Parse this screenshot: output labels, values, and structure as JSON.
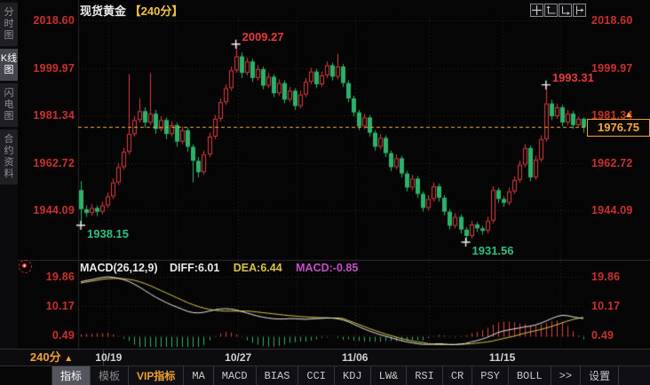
{
  "header": {
    "title": "现货黄金",
    "period": "【240分】"
  },
  "sidebar": {
    "tabs": [
      {
        "label": "分时图",
        "selected": false
      },
      {
        "label": "K线图",
        "selected": true
      },
      {
        "label": "闪电图",
        "selected": false
      },
      {
        "label": "合约资料",
        "selected": false
      }
    ]
  },
  "tool_icons": [
    "move-tool",
    "y-axis-scale",
    "x-axis-scale",
    "shift-right"
  ],
  "price_axis_ticks": [
    "2018.60",
    "1999.97",
    "1981.34",
    "1962.72",
    "1944.09"
  ],
  "macd_axis_ticks": [
    "19.86",
    "10.17",
    "0.49"
  ],
  "current_price": {
    "value": "1976.75"
  },
  "macd_panel": {
    "name": "MACD(26,12,9)",
    "diff_label": "DIFF:6.01",
    "dea_label": "DEA:6.44",
    "macd_label": "MACD:-0.85"
  },
  "x_axis": {
    "period_label": "240分",
    "period_arrow": "▲",
    "dates": [
      "10/19",
      "10/27",
      "11/06",
      "11/15"
    ]
  },
  "toolbar": {
    "items": [
      {
        "label": "指标",
        "state": "selected",
        "cjk": true
      },
      {
        "label": "模板",
        "state": "dim",
        "cjk": true
      },
      {
        "label": "VIP指标",
        "state": "vip",
        "cjk": true
      },
      {
        "label": "MA"
      },
      {
        "label": "MACD"
      },
      {
        "label": "BIAS"
      },
      {
        "label": "CCI"
      },
      {
        "label": "KDJ"
      },
      {
        "label": "LW&"
      },
      {
        "label": "RSI"
      },
      {
        "label": "CR"
      },
      {
        "label": "PSY"
      },
      {
        "label": "BOLL"
      },
      {
        "label": ">>"
      },
      {
        "label": "设置",
        "cjk": true
      }
    ]
  },
  "colors": {
    "up_red": "#e0393d",
    "down_green": "#2ab46a",
    "axis_red": "#c9302c",
    "accent_orange": "#f2a93f",
    "dea_yellow": "#d9c542",
    "diff_white": "#e8e8e8",
    "macd_magenta": "#c34fc9",
    "anno_red": "#e8393c",
    "anno_green": "#2fbf7f",
    "grid_h": "#3b2424",
    "grid_v": "#282828"
  },
  "chart_data": {
    "type": "candlestick+macd",
    "title": "现货黄金 240分K线 与 MACD(26,12,9)",
    "price_ticks": [
      2018.6,
      1999.97,
      1981.34,
      1962.72,
      1944.09
    ],
    "macd_ticks": [
      19.86,
      10.17,
      0.49
    ],
    "date_ticks": [
      "10/19",
      "10/27",
      "11/06",
      "11/15"
    ],
    "current_price": 1976.75,
    "legend": {
      "diff": 6.01,
      "dea": 6.44,
      "macd_bar": -0.85
    },
    "annotations": [
      {
        "label": "2009.27",
        "index": 29,
        "at": "high",
        "color": "#e8393c"
      },
      {
        "label": "1993.31",
        "index": 87,
        "at": "high",
        "color": "#e8393c"
      },
      {
        "label": "1938.15",
        "index": 0,
        "at": "low",
        "color": "#2fbf7f"
      },
      {
        "label": "1931.56",
        "index": 72,
        "at": "low",
        "color": "#2fbf7f"
      }
    ],
    "candles": [
      [
        1952.0,
        1955.5,
        1938.15,
        1944.5
      ],
      [
        1944.5,
        1946.0,
        1941.5,
        1943.0
      ],
      [
        1943.0,
        1946.5,
        1942.0,
        1945.0
      ],
      [
        1945.0,
        1946.0,
        1941.8,
        1943.5
      ],
      [
        1943.5,
        1947.5,
        1942.5,
        1946.0
      ],
      [
        1946.0,
        1951.0,
        1945.0,
        1949.5
      ],
      [
        1949.5,
        1956.5,
        1948.5,
        1955.0
      ],
      [
        1955.0,
        1962.5,
        1954.0,
        1961.0
      ],
      [
        1961.0,
        1968.5,
        1960.0,
        1967.0
      ],
      [
        1967.0,
        1997.5,
        1966.0,
        1974.0
      ],
      [
        1974.0,
        1981.0,
        1973.0,
        1979.5
      ],
      [
        1979.5,
        1988.0,
        1978.5,
        1983.0
      ],
      [
        1983.0,
        1984.5,
        1976.5,
        1978.5
      ],
      [
        1978.5,
        1998.0,
        1977.5,
        1982.0
      ],
      [
        1982.0,
        1983.5,
        1974.0,
        1976.0
      ],
      [
        1976.0,
        1981.0,
        1975.0,
        1979.5
      ],
      [
        1979.5,
        1980.5,
        1972.0,
        1974.0
      ],
      [
        1974.0,
        1979.0,
        1973.0,
        1977.5
      ],
      [
        1977.5,
        1978.5,
        1969.0,
        1971.0
      ],
      [
        1971.0,
        1977.0,
        1970.0,
        1975.5
      ],
      [
        1975.5,
        1976.5,
        1967.0,
        1969.0
      ],
      [
        1969.0,
        1970.0,
        1955.0,
        1963.5
      ],
      [
        1963.5,
        1965.0,
        1957.0,
        1959.0
      ],
      [
        1959.0,
        1967.5,
        1958.0,
        1966.0
      ],
      [
        1966.0,
        1974.5,
        1965.0,
        1973.0
      ],
      [
        1973.0,
        1981.5,
        1972.0,
        1980.0
      ],
      [
        1980.0,
        1988.0,
        1979.0,
        1986.5
      ],
      [
        1986.5,
        1993.5,
        1985.5,
        1992.0
      ],
      [
        1992.0,
        2000.5,
        1991.0,
        1999.0
      ],
      [
        1999.0,
        2009.27,
        1998.0,
        2004.5
      ],
      [
        2004.5,
        2006.0,
        1996.0,
        1998.0
      ],
      [
        1998.0,
        2004.0,
        1997.0,
        2002.5
      ],
      [
        2002.5,
        2003.5,
        1994.5,
        1996.0
      ],
      [
        1996.0,
        2001.0,
        1995.0,
        1999.5
      ],
      [
        1999.5,
        2000.5,
        1991.5,
        1993.0
      ],
      [
        1993.0,
        1998.0,
        1992.0,
        1996.5
      ],
      [
        1996.5,
        1997.5,
        1988.5,
        1990.0
      ],
      [
        1990.0,
        1995.5,
        1989.0,
        1994.0
      ],
      [
        1994.0,
        1995.0,
        1986.0,
        1987.5
      ],
      [
        1987.5,
        1992.5,
        1986.5,
        1991.0
      ],
      [
        1991.0,
        1992.0,
        1983.5,
        1985.0
      ],
      [
        1985.0,
        1991.0,
        1984.0,
        1989.5
      ],
      [
        1989.5,
        1996.0,
        1988.5,
        1994.5
      ],
      [
        1994.5,
        2000.0,
        1993.5,
        1998.5
      ],
      [
        1998.5,
        1999.5,
        1992.0,
        1993.5
      ],
      [
        1993.5,
        1998.5,
        1992.5,
        1997.0
      ],
      [
        1997.0,
        2002.5,
        1996.0,
        2001.0
      ],
      [
        2001.0,
        2002.0,
        1995.0,
        1996.5
      ],
      [
        1996.5,
        2005.5,
        1995.5,
        2000.5
      ],
      [
        2000.5,
        2001.5,
        1992.5,
        1994.0
      ],
      [
        1994.0,
        1995.0,
        1986.5,
        1988.0
      ],
      [
        1988.0,
        1989.0,
        1981.0,
        1982.5
      ],
      [
        1982.5,
        1983.5,
        1975.5,
        1977.0
      ],
      [
        1977.0,
        1982.0,
        1976.0,
        1980.5
      ],
      [
        1980.5,
        1981.5,
        1973.0,
        1974.5
      ],
      [
        1974.5,
        1975.5,
        1967.5,
        1969.0
      ],
      [
        1969.0,
        1974.0,
        1968.0,
        1972.5
      ],
      [
        1972.5,
        1973.5,
        1965.0,
        1966.5
      ],
      [
        1966.5,
        1967.5,
        1959.5,
        1961.0
      ],
      [
        1961.0,
        1966.0,
        1960.0,
        1964.5
      ],
      [
        1964.5,
        1965.5,
        1957.0,
        1958.5
      ],
      [
        1958.5,
        1959.5,
        1951.5,
        1953.0
      ],
      [
        1953.0,
        1958.0,
        1952.0,
        1956.5
      ],
      [
        1956.5,
        1957.5,
        1949.0,
        1950.5
      ],
      [
        1950.5,
        1951.5,
        1943.5,
        1945.0
      ],
      [
        1945.0,
        1950.0,
        1944.0,
        1948.5
      ],
      [
        1948.5,
        1955.0,
        1947.5,
        1953.5
      ],
      [
        1953.5,
        1954.5,
        1947.5,
        1949.0
      ],
      [
        1949.0,
        1950.0,
        1942.0,
        1943.5
      ],
      [
        1943.5,
        1944.5,
        1936.5,
        1938.0
      ],
      [
        1938.0,
        1943.0,
        1937.0,
        1941.5
      ],
      [
        1941.5,
        1942.5,
        1935.0,
        1936.5
      ],
      [
        1936.5,
        1937.5,
        1931.56,
        1934.0
      ],
      [
        1934.0,
        1940.0,
        1933.0,
        1938.5
      ],
      [
        1938.5,
        1939.5,
        1935.5,
        1937.0
      ],
      [
        1937.0,
        1938.0,
        1934.5,
        1936.0
      ],
      [
        1936.0,
        1941.5,
        1935.0,
        1940.0
      ],
      [
        1940.0,
        1953.5,
        1939.0,
        1952.0
      ],
      [
        1952.0,
        1953.0,
        1947.0,
        1948.5
      ],
      [
        1948.5,
        1949.5,
        1945.5,
        1947.0
      ],
      [
        1947.0,
        1953.0,
        1946.0,
        1951.5
      ],
      [
        1951.5,
        1957.5,
        1950.5,
        1956.0
      ],
      [
        1956.0,
        1963.5,
        1955.0,
        1962.0
      ],
      [
        1962.0,
        1970.0,
        1961.0,
        1968.5
      ],
      [
        1968.5,
        1969.5,
        1955.5,
        1957.0
      ],
      [
        1957.0,
        1965.5,
        1956.0,
        1964.0
      ],
      [
        1964.0,
        1973.5,
        1963.0,
        1972.0
      ],
      [
        1972.0,
        1993.31,
        1971.0,
        1986.0
      ],
      [
        1986.0,
        1987.5,
        1979.5,
        1981.0
      ],
      [
        1981.0,
        1986.0,
        1980.0,
        1984.5
      ],
      [
        1984.5,
        1985.5,
        1977.0,
        1978.5
      ],
      [
        1978.5,
        1983.5,
        1977.5,
        1982.0
      ],
      [
        1982.0,
        1983.0,
        1976.0,
        1977.5
      ],
      [
        1977.5,
        1981.0,
        1976.5,
        1980.0
      ],
      [
        1980.0,
        1980.5,
        1974.5,
        1976.75
      ]
    ],
    "macd": {
      "diff_series": [
        18.2,
        18.6,
        18.9,
        19.3,
        19.6,
        19.86,
        19.7,
        19.4,
        18.9,
        18.3,
        17.4,
        16.4,
        15.3,
        14.2,
        13.1,
        12.2,
        11.3,
        10.5,
        9.8,
        9.1,
        8.4,
        8.0,
        7.9,
        8.1,
        8.5,
        8.9,
        9.2,
        9.3,
        9.2,
        8.9,
        8.4,
        7.9,
        7.4,
        6.9,
        6.5,
        6.2,
        6.0,
        5.9,
        5.9,
        6.0,
        6.0,
        5.9,
        5.8,
        5.9,
        6.0,
        6.1,
        6.2,
        6.2,
        6.0,
        5.6,
        5.0,
        4.2,
        3.4,
        2.6,
        1.9,
        1.3,
        0.7,
        0.2,
        -0.3,
        -0.8,
        -1.3,
        -1.7,
        -2.0,
        -2.3,
        -2.5,
        -2.5,
        -2.4,
        -2.3,
        -2.4,
        -2.6,
        -2.6,
        -2.4,
        -2.2,
        -1.7,
        -1.3,
        -0.8,
        -0.2,
        0.6,
        1.4,
        1.9,
        2.3,
        2.6,
        2.9,
        3.3,
        3.5,
        3.9,
        4.5,
        5.2,
        6.0,
        6.7,
        7.1,
        7.0,
        6.6,
        6.3,
        6.01
      ],
      "dea_series": [
        17.8,
        18.1,
        18.4,
        18.7,
        19.0,
        19.2,
        19.3,
        19.3,
        19.2,
        19.0,
        18.7,
        18.2,
        17.6,
        16.9,
        16.1,
        15.3,
        14.5,
        13.7,
        12.9,
        12.1,
        11.3,
        10.6,
        10.0,
        9.5,
        9.1,
        8.8,
        8.6,
        8.5,
        8.5,
        8.5,
        8.5,
        8.5,
        8.4,
        8.2,
        8.0,
        7.8,
        7.6,
        7.4,
        7.2,
        7.0,
        6.9,
        6.7,
        6.6,
        6.5,
        6.4,
        6.3,
        6.3,
        6.2,
        6.2,
        6.1,
        5.4,
        4.8,
        4.1,
        3.4,
        2.7,
        2.1,
        1.5,
        0.9,
        0.4,
        -0.1,
        -0.6,
        -1.0,
        -1.4,
        -1.7,
        -1.9,
        -2.3,
        -2.5,
        -2.6,
        -2.6,
        -2.5,
        -2.5,
        -2.5,
        -2.4,
        -2.3,
        -2.1,
        -1.9,
        -1.7,
        -1.4,
        -1.0,
        -0.6,
        -0.2,
        0.2,
        0.7,
        1.2,
        1.6,
        2.0,
        2.4,
        2.9,
        3.4,
        4.0,
        4.6,
        5.2,
        5.7,
        6.1,
        6.44
      ],
      "histogram_rule": "2*(diff-dea)"
    }
  }
}
